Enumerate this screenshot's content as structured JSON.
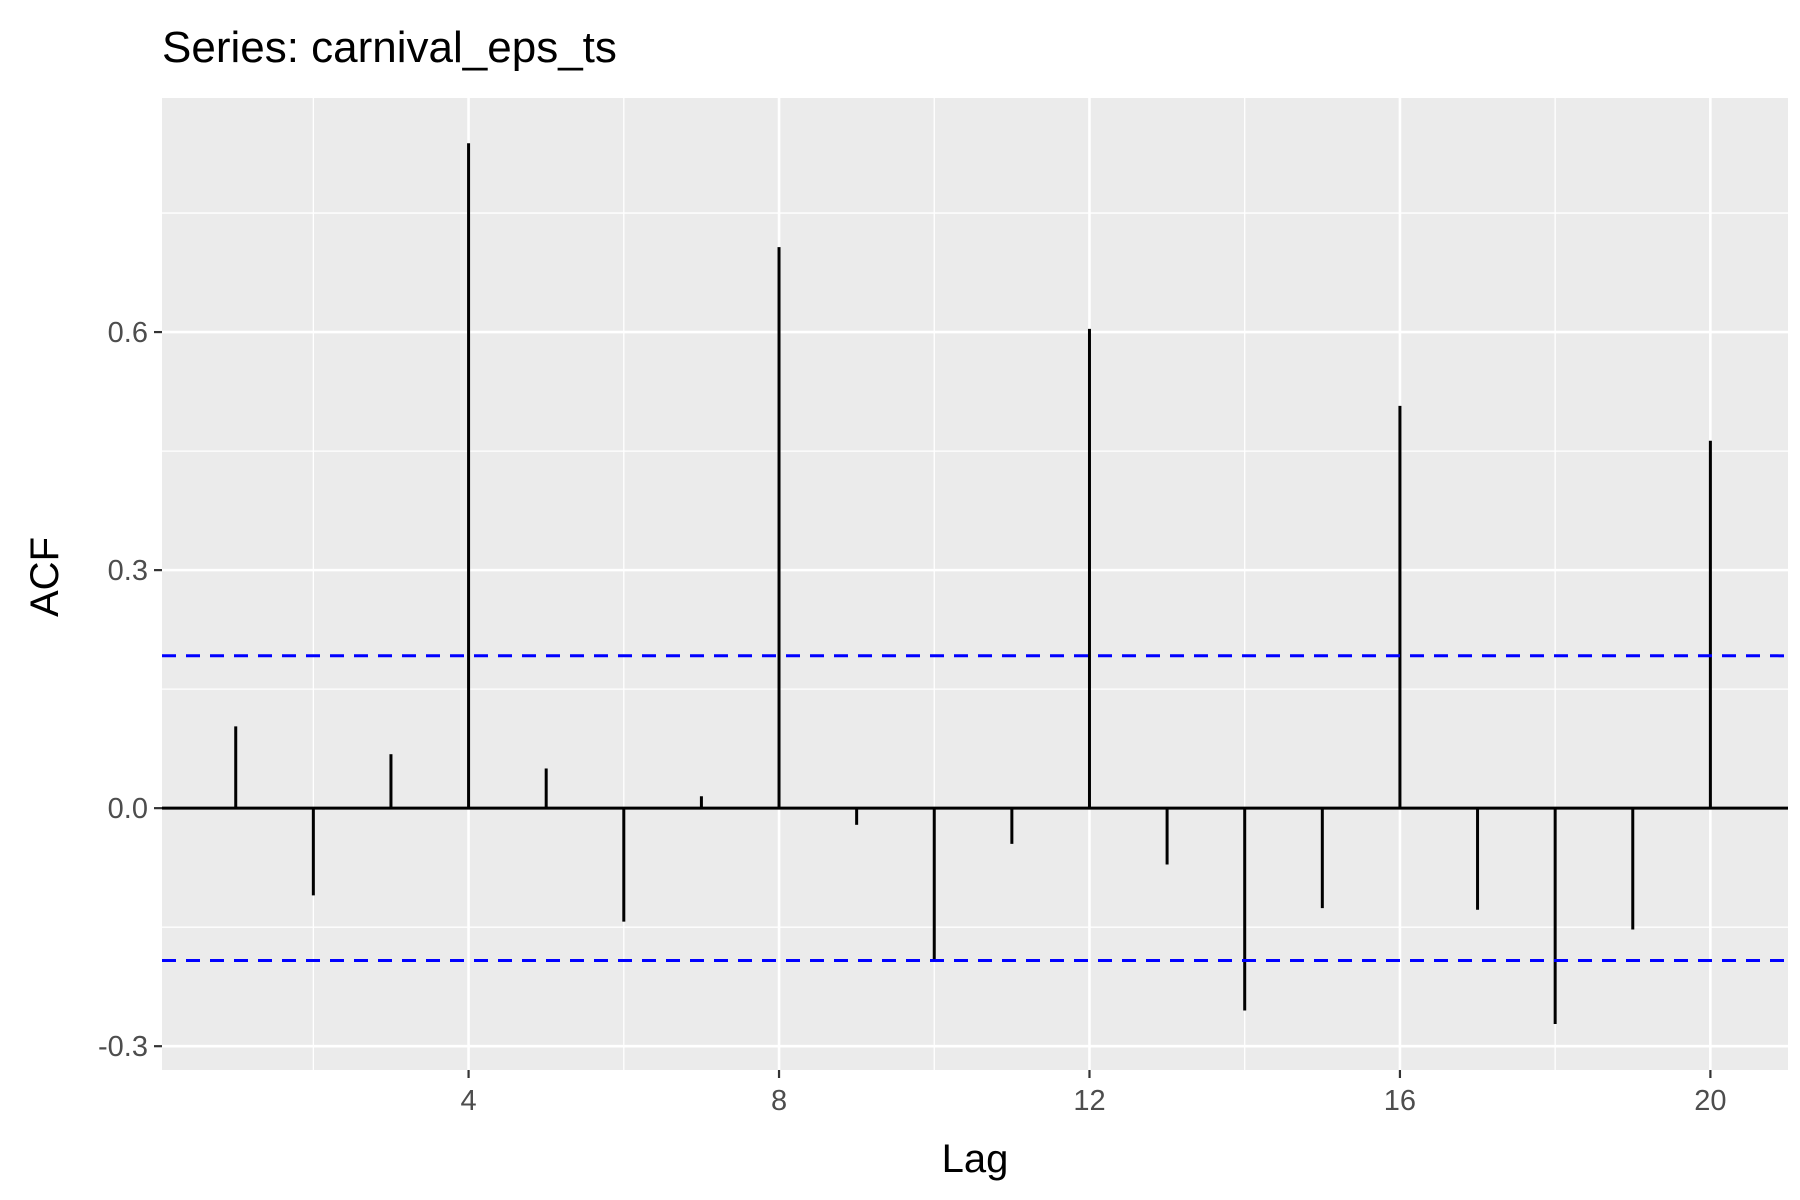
{
  "chart_data": {
    "type": "bar",
    "title": "Series: carnival_eps_ts",
    "xlabel": "Lag",
    "ylabel": "ACF",
    "xlim": [
      0.05,
      21
    ],
    "ylim": [
      -0.33,
      0.895
    ],
    "x_ticks": [
      4,
      8,
      12,
      16,
      20
    ],
    "x_tick_labels": [
      "4",
      "8",
      "12",
      "16",
      "20"
    ],
    "y_ticks": [
      -0.3,
      0.0,
      0.3,
      0.6
    ],
    "y_tick_labels": [
      "-0.3",
      "0.0",
      "0.3",
      "0.6"
    ],
    "lags": [
      1,
      2,
      3,
      4,
      5,
      6,
      7,
      8,
      9,
      10,
      11,
      12,
      13,
      14,
      15,
      16,
      17,
      18,
      19,
      20
    ],
    "values": [
      0.103,
      -0.11,
      0.068,
      0.838,
      0.05,
      -0.143,
      0.015,
      0.707,
      -0.021,
      -0.193,
      -0.045,
      0.604,
      -0.071,
      -0.255,
      -0.126,
      0.507,
      -0.128,
      -0.272,
      -0.153,
      0.463
    ],
    "confidence_bound": 0.192,
    "grid": true,
    "colors": {
      "panel_background": "#ebebeb",
      "grid": "#ffffff",
      "bars": "#000000",
      "confidence_line": "#0000ff"
    }
  }
}
